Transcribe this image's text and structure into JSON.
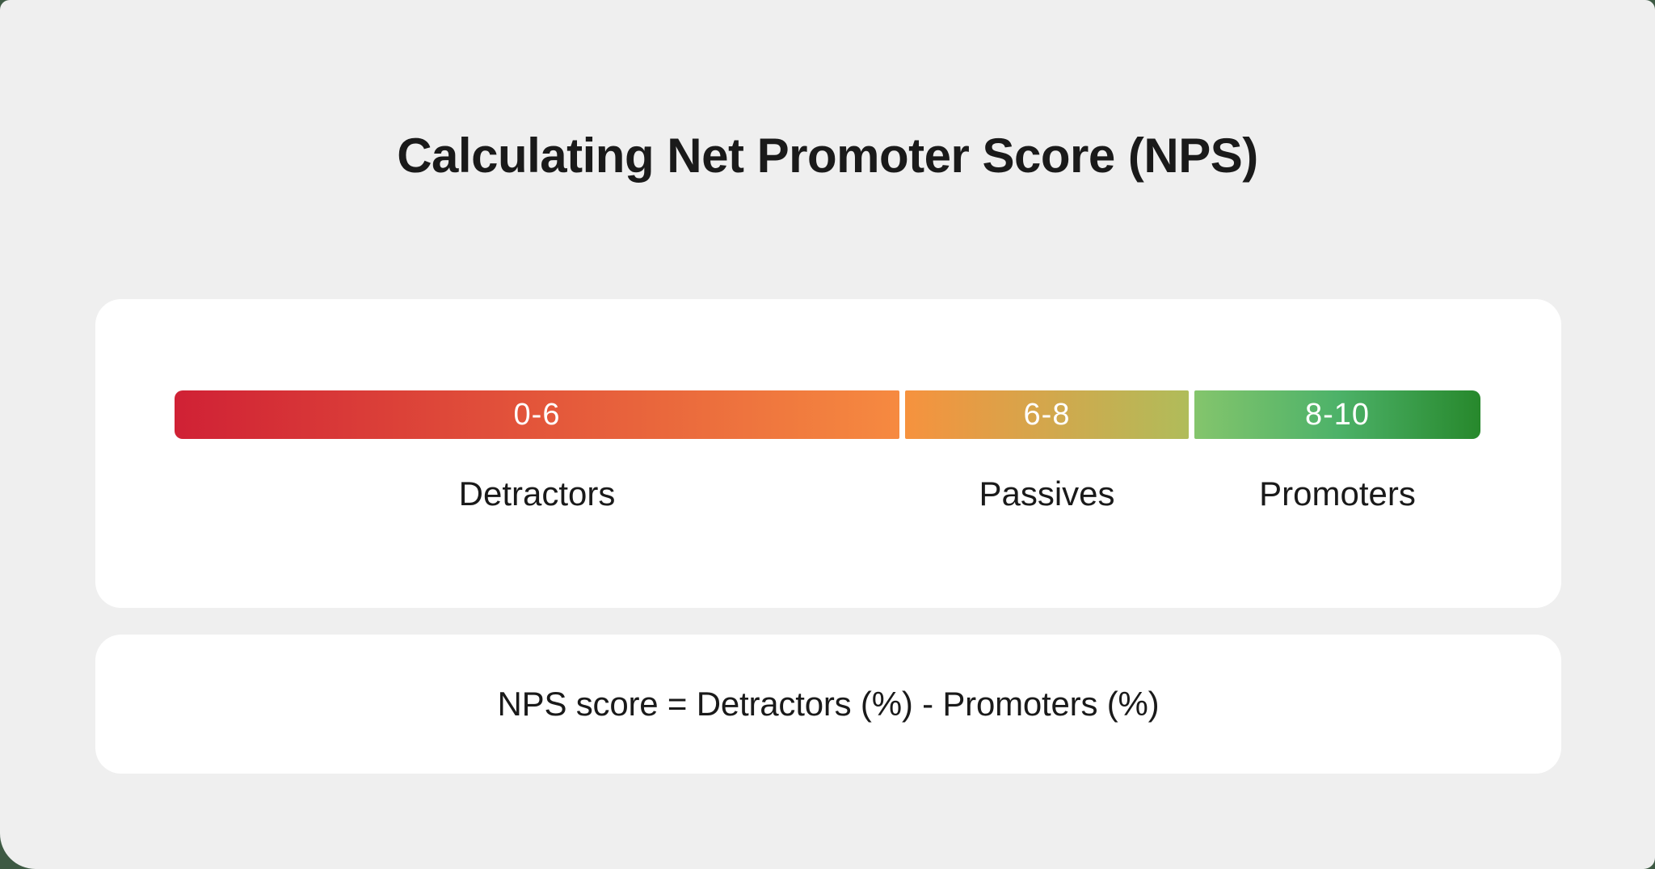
{
  "page": {
    "title": "Calculating Net Promoter Score (NPS)"
  },
  "colors": {
    "canvas_bg": "#efefef",
    "card_bg": "#ffffff",
    "text": "#1a1a1a",
    "page_behind": "#3e5a44"
  },
  "scale_bar": {
    "label_text_color": "#ffffff",
    "segments": [
      {
        "range": "0-6",
        "group": "Detractors",
        "gradient_from": "#d02135",
        "gradient_to": "#f68a40"
      },
      {
        "range": "6-8",
        "group": "Passives",
        "gradient_from": "#f6923e",
        "gradient_to": "#b0bc5a"
      },
      {
        "range": "8-10",
        "group": "Promoters",
        "gradient_from": "#84c56c",
        "gradient_mid": "#4db269",
        "gradient_to": "#27882c"
      }
    ]
  },
  "formula": {
    "text": "NPS score = Detractors (%) - Promoters (%)"
  }
}
